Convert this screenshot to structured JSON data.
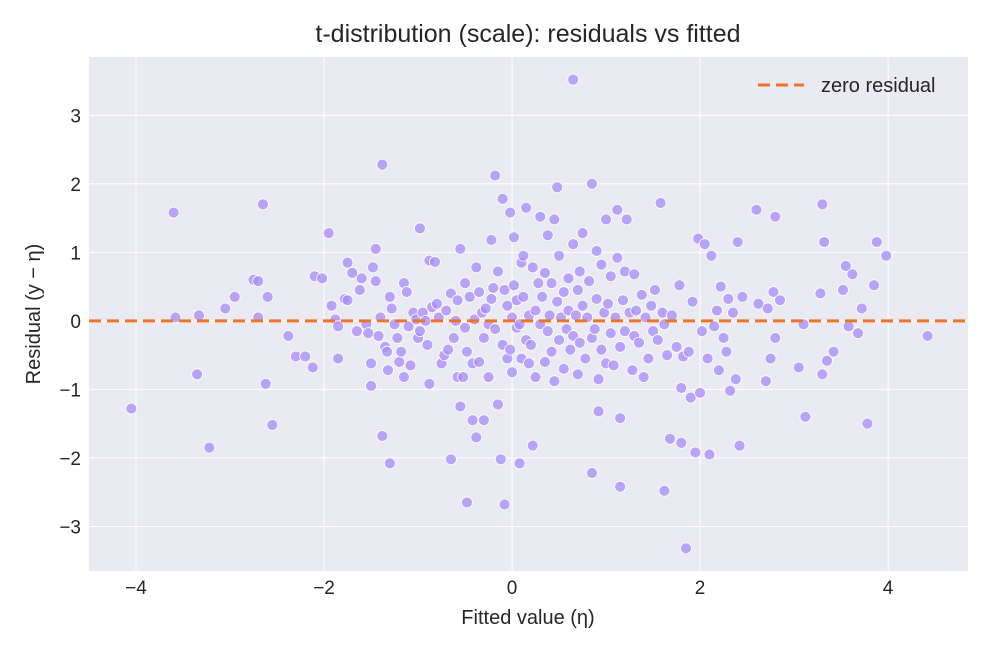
{
  "chart_data": {
    "type": "scatter",
    "title": "t-distribution (scale): residuals vs fitted",
    "xlabel": "Fitted value (η)",
    "ylabel": "Residual (y − η)",
    "xlim": [
      -4.5,
      4.85
    ],
    "ylim": [
      -3.65,
      3.85
    ],
    "xticks": [
      -4,
      -2,
      0,
      2,
      4
    ],
    "xtick_labels": [
      "−4",
      "−2",
      "0",
      "2",
      "4"
    ],
    "yticks": [
      -3,
      -2,
      -1,
      0,
      1,
      2,
      3
    ],
    "ytick_labels": [
      "−3",
      "−2",
      "−1",
      "0",
      "1",
      "2",
      "3"
    ],
    "grid": true,
    "background": "#eaeaf2",
    "point_color": "#a78bfa",
    "reference_line": {
      "label": "zero residual",
      "y": 0,
      "color": "#f07427",
      "style": "dashed"
    },
    "legend": {
      "position": "top-right",
      "entries": [
        "zero residual"
      ]
    },
    "points": [
      [
        -4.05,
        -1.28
      ],
      [
        -3.6,
        1.58
      ],
      [
        -3.58,
        0.05
      ],
      [
        -3.35,
        -0.78
      ],
      [
        -3.33,
        0.08
      ],
      [
        -3.22,
        -1.85
      ],
      [
        -3.05,
        0.18
      ],
      [
        -2.95,
        0.35
      ],
      [
        -2.75,
        0.6
      ],
      [
        -2.7,
        0.58
      ],
      [
        -2.7,
        0.05
      ],
      [
        -2.65,
        1.7
      ],
      [
        -2.62,
        -0.92
      ],
      [
        -2.6,
        0.35
      ],
      [
        -2.55,
        -1.52
      ],
      [
        -2.38,
        -0.22
      ],
      [
        -2.3,
        -0.52
      ],
      [
        -2.2,
        -0.52
      ],
      [
        -2.12,
        -0.68
      ],
      [
        -2.1,
        0.65
      ],
      [
        -2.02,
        0.62
      ],
      [
        -1.95,
        1.28
      ],
      [
        -1.92,
        0.22
      ],
      [
        -1.88,
        0.02
      ],
      [
        -1.85,
        -0.08
      ],
      [
        -1.85,
        -0.55
      ],
      [
        -1.78,
        0.32
      ],
      [
        -1.75,
        0.85
      ],
      [
        -1.75,
        0.3
      ],
      [
        -1.7,
        0.7
      ],
      [
        -1.65,
        -0.15
      ],
      [
        -1.62,
        0.45
      ],
      [
        -1.6,
        0.62
      ],
      [
        -1.55,
        -0.05
      ],
      [
        -1.53,
        -0.18
      ],
      [
        -1.5,
        -0.62
      ],
      [
        -1.5,
        -0.95
      ],
      [
        -1.48,
        0.78
      ],
      [
        -1.45,
        1.05
      ],
      [
        -1.45,
        0.58
      ],
      [
        -1.42,
        -0.22
      ],
      [
        -1.4,
        0.05
      ],
      [
        -1.38,
        2.28
      ],
      [
        -1.38,
        -1.68
      ],
      [
        -1.35,
        -0.38
      ],
      [
        -1.33,
        -0.45
      ],
      [
        -1.32,
        -0.72
      ],
      [
        -1.3,
        0.35
      ],
      [
        -1.3,
        -2.08
      ],
      [
        -1.28,
        0.18
      ],
      [
        -1.25,
        -0.05
      ],
      [
        -1.22,
        -0.25
      ],
      [
        -1.2,
        -0.6
      ],
      [
        -1.18,
        -0.45
      ],
      [
        -1.15,
        0.55
      ],
      [
        -1.15,
        -0.82
      ],
      [
        -1.12,
        0.42
      ],
      [
        -1.1,
        -0.08
      ],
      [
        -1.08,
        -0.65
      ],
      [
        -1.05,
        0.12
      ],
      [
        -1.02,
        0.02
      ],
      [
        -1.0,
        -0.25
      ],
      [
        -0.98,
        1.35
      ],
      [
        -0.98,
        -0.15
      ],
      [
        -0.95,
        0.12
      ],
      [
        -0.92,
        0.0
      ],
      [
        -0.9,
        -0.35
      ],
      [
        -0.88,
        0.88
      ],
      [
        -0.88,
        -0.92
      ],
      [
        -0.85,
        0.2
      ],
      [
        -0.82,
        0.86
      ],
      [
        -0.8,
        0.25
      ],
      [
        -0.78,
        0.05
      ],
      [
        -0.75,
        -0.62
      ],
      [
        -0.72,
        -0.5
      ],
      [
        -0.7,
        0.15
      ],
      [
        -0.68,
        -0.42
      ],
      [
        -0.65,
        -2.02
      ],
      [
        -0.65,
        0.4
      ],
      [
        -0.62,
        -0.25
      ],
      [
        -0.6,
        0.0
      ],
      [
        -0.58,
        -0.82
      ],
      [
        -0.58,
        0.3
      ],
      [
        -0.55,
        1.05
      ],
      [
        -0.55,
        -1.25
      ],
      [
        -0.52,
        -0.82
      ],
      [
        -0.5,
        0.55
      ],
      [
        -0.5,
        -0.1
      ],
      [
        -0.48,
        -0.45
      ],
      [
        -0.48,
        -2.65
      ],
      [
        -0.45,
        0.35
      ],
      [
        -0.42,
        -1.45
      ],
      [
        -0.42,
        -0.62
      ],
      [
        -0.4,
        0.02
      ],
      [
        -0.38,
        -1.7
      ],
      [
        -0.38,
        0.78
      ],
      [
        -0.35,
        -0.6
      ],
      [
        -0.35,
        0.42
      ],
      [
        -0.32,
        0.12
      ],
      [
        -0.3,
        -0.25
      ],
      [
        -0.3,
        -1.45
      ],
      [
        -0.28,
        0.18
      ],
      [
        -0.25,
        -0.05
      ],
      [
        -0.25,
        -0.82
      ],
      [
        -0.22,
        1.18
      ],
      [
        -0.22,
        0.32
      ],
      [
        -0.2,
        0.48
      ],
      [
        -0.18,
        2.12
      ],
      [
        -0.18,
        -0.12
      ],
      [
        -0.15,
        -1.22
      ],
      [
        -0.15,
        0.72
      ],
      [
        -0.12,
        -2.02
      ],
      [
        -0.1,
        1.78
      ],
      [
        -0.1,
        -0.35
      ],
      [
        -0.08,
        -2.68
      ],
      [
        -0.08,
        0.45
      ],
      [
        -0.05,
        -0.55
      ],
      [
        -0.05,
        0.22
      ],
      [
        -0.02,
        1.58
      ],
      [
        -0.02,
        -0.42
      ],
      [
        0.0,
        0.05
      ],
      [
        0.0,
        -0.75
      ],
      [
        0.02,
        1.22
      ],
      [
        0.02,
        0.52
      ],
      [
        0.05,
        -0.1
      ],
      [
        0.05,
        0.3
      ],
      [
        0.08,
        -2.08
      ],
      [
        0.08,
        -0.05
      ],
      [
        0.1,
        0.85
      ],
      [
        0.1,
        -0.55
      ],
      [
        0.12,
        0.95
      ],
      [
        0.12,
        0.35
      ],
      [
        0.15,
        1.65
      ],
      [
        0.15,
        -0.28
      ],
      [
        0.18,
        0.08
      ],
      [
        0.18,
        -0.62
      ],
      [
        0.2,
        -0.35
      ],
      [
        0.22,
        0.78
      ],
      [
        0.22,
        -1.82
      ],
      [
        0.25,
        0.15
      ],
      [
        0.25,
        -0.82
      ],
      [
        0.28,
        0.55
      ],
      [
        0.3,
        1.52
      ],
      [
        0.3,
        -0.05
      ],
      [
        0.32,
        0.35
      ],
      [
        0.35,
        -0.6
      ],
      [
        0.35,
        0.7
      ],
      [
        0.38,
        1.25
      ],
      [
        0.38,
        -0.15
      ],
      [
        0.4,
        0.08
      ],
      [
        0.42,
        -0.45
      ],
      [
        0.42,
        0.55
      ],
      [
        0.45,
        1.48
      ],
      [
        0.45,
        -0.88
      ],
      [
        0.48,
        1.95
      ],
      [
        0.48,
        0.28
      ],
      [
        0.5,
        -0.28
      ],
      [
        0.5,
        0.95
      ],
      [
        0.52,
        0.05
      ],
      [
        0.55,
        -0.7
      ],
      [
        0.55,
        0.42
      ],
      [
        0.58,
        -0.12
      ],
      [
        0.6,
        0.62
      ],
      [
        0.6,
        0.15
      ],
      [
        0.62,
        -0.42
      ],
      [
        0.65,
        3.52
      ],
      [
        0.65,
        1.12
      ],
      [
        0.65,
        -0.22
      ],
      [
        0.68,
        0.08
      ],
      [
        0.7,
        -0.78
      ],
      [
        0.7,
        0.45
      ],
      [
        0.72,
        0.72
      ],
      [
        0.72,
        -0.32
      ],
      [
        0.75,
        1.28
      ],
      [
        0.75,
        0.22
      ],
      [
        0.78,
        -0.55
      ],
      [
        0.8,
        0.05
      ],
      [
        0.82,
        0.58
      ],
      [
        0.85,
        2.0
      ],
      [
        0.85,
        -2.22
      ],
      [
        0.85,
        -0.25
      ],
      [
        0.88,
        -0.12
      ],
      [
        0.9,
        1.02
      ],
      [
        0.9,
        0.32
      ],
      [
        0.92,
        -0.85
      ],
      [
        0.92,
        -1.32
      ],
      [
        0.95,
        -0.42
      ],
      [
        0.95,
        0.82
      ],
      [
        0.98,
        0.12
      ],
      [
        1.0,
        -0.62
      ],
      [
        1.0,
        1.48
      ],
      [
        1.02,
        0.25
      ],
      [
        1.05,
        -0.18
      ],
      [
        1.05,
        0.65
      ],
      [
        1.08,
        -0.65
      ],
      [
        1.1,
        0.05
      ],
      [
        1.12,
        1.62
      ],
      [
        1.12,
        0.92
      ],
      [
        1.15,
        -0.38
      ],
      [
        1.15,
        -2.42
      ],
      [
        1.15,
        -1.42
      ],
      [
        1.18,
        0.3
      ],
      [
        1.2,
        0.72
      ],
      [
        1.2,
        -0.15
      ],
      [
        1.22,
        1.48
      ],
      [
        1.25,
        0.12
      ],
      [
        1.28,
        -0.72
      ],
      [
        1.3,
        0.68
      ],
      [
        1.3,
        -0.22
      ],
      [
        1.32,
        0.15
      ],
      [
        1.35,
        -0.32
      ],
      [
        1.38,
        0.38
      ],
      [
        1.4,
        -0.82
      ],
      [
        1.42,
        0.05
      ],
      [
        1.45,
        -0.55
      ],
      [
        1.48,
        0.22
      ],
      [
        1.5,
        -0.15
      ],
      [
        1.52,
        0.45
      ],
      [
        1.55,
        -0.28
      ],
      [
        1.58,
        1.72
      ],
      [
        1.6,
        0.12
      ],
      [
        1.62,
        -0.05
      ],
      [
        1.62,
        -2.48
      ],
      [
        1.65,
        -0.5
      ],
      [
        1.68,
        -1.72
      ],
      [
        1.7,
        0.08
      ],
      [
        1.75,
        -0.38
      ],
      [
        1.78,
        0.52
      ],
      [
        1.8,
        -0.98
      ],
      [
        1.8,
        -1.78
      ],
      [
        1.82,
        -0.52
      ],
      [
        1.85,
        -3.32
      ],
      [
        1.88,
        -0.45
      ],
      [
        1.9,
        -1.12
      ],
      [
        1.92,
        0.28
      ],
      [
        1.95,
        -1.92
      ],
      [
        1.98,
        1.2
      ],
      [
        2.0,
        -1.05
      ],
      [
        2.02,
        -0.15
      ],
      [
        2.05,
        1.12
      ],
      [
        2.08,
        -0.55
      ],
      [
        2.1,
        -1.95
      ],
      [
        2.12,
        0.95
      ],
      [
        2.15,
        -0.08
      ],
      [
        2.18,
        0.15
      ],
      [
        2.2,
        -0.72
      ],
      [
        2.22,
        0.5
      ],
      [
        2.25,
        -0.25
      ],
      [
        2.28,
        -0.45
      ],
      [
        2.3,
        0.32
      ],
      [
        2.32,
        -1.02
      ],
      [
        2.35,
        0.12
      ],
      [
        2.38,
        -0.85
      ],
      [
        2.4,
        1.15
      ],
      [
        2.42,
        -1.82
      ],
      [
        2.45,
        0.35
      ],
      [
        2.6,
        1.62
      ],
      [
        2.62,
        0.25
      ],
      [
        2.7,
        -0.88
      ],
      [
        2.72,
        0.18
      ],
      [
        2.75,
        -0.55
      ],
      [
        2.78,
        0.42
      ],
      [
        2.8,
        -0.25
      ],
      [
        2.8,
        1.52
      ],
      [
        2.85,
        0.3
      ],
      [
        3.05,
        -0.68
      ],
      [
        3.1,
        -0.05
      ],
      [
        3.12,
        -1.4
      ],
      [
        3.28,
        0.4
      ],
      [
        3.3,
        1.7
      ],
      [
        3.3,
        -0.78
      ],
      [
        3.32,
        1.15
      ],
      [
        3.35,
        -0.58
      ],
      [
        3.42,
        -0.45
      ],
      [
        3.52,
        0.45
      ],
      [
        3.55,
        0.8
      ],
      [
        3.58,
        -0.08
      ],
      [
        3.62,
        0.68
      ],
      [
        3.68,
        -0.18
      ],
      [
        3.72,
        0.18
      ],
      [
        3.78,
        -1.5
      ],
      [
        3.85,
        0.52
      ],
      [
        3.88,
        1.15
      ],
      [
        3.98,
        0.95
      ],
      [
        4.42,
        -0.22
      ]
    ]
  }
}
